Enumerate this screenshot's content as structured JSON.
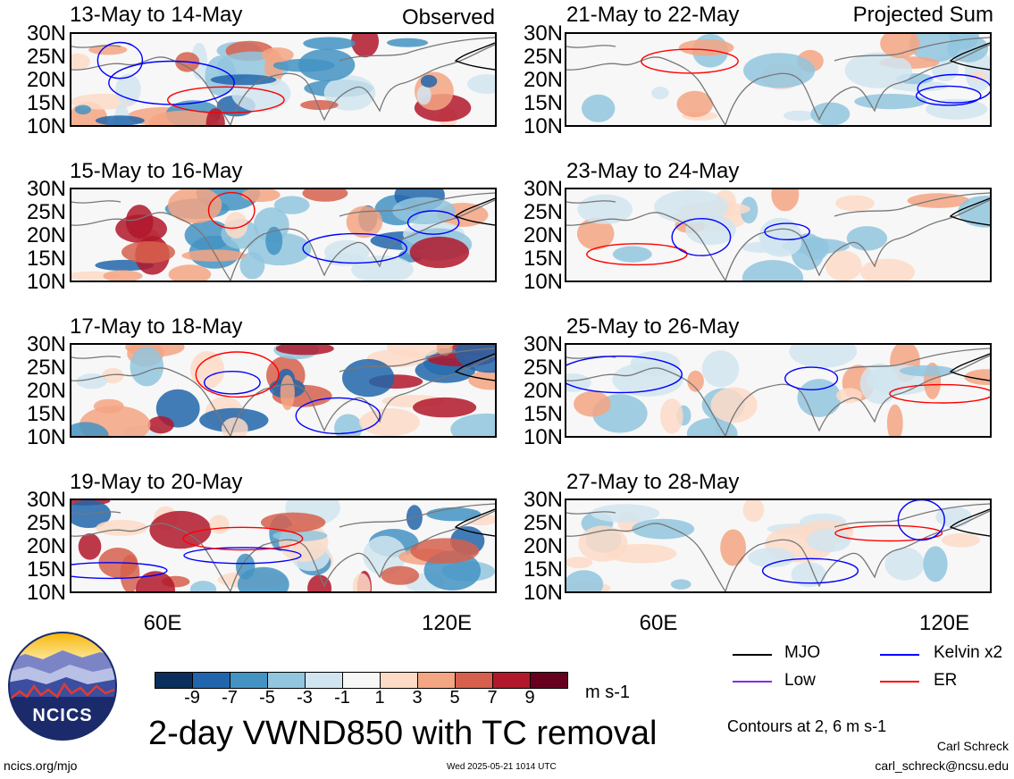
{
  "panels_left": [
    {
      "title": "13-May to 14-May",
      "note": "Observed"
    },
    {
      "title": "15-May to 16-May",
      "note": ""
    },
    {
      "title": "17-May to 18-May",
      "note": ""
    },
    {
      "title": "19-May to 20-May",
      "note": ""
    }
  ],
  "panels_right": [
    {
      "title": "21-May to 22-May",
      "note": "Projected Sum"
    },
    {
      "title": "23-May to 24-May",
      "note": ""
    },
    {
      "title": "25-May to 26-May",
      "note": ""
    },
    {
      "title": "27-May to 28-May",
      "note": ""
    }
  ],
  "lat_ticks": [
    "30N",
    "25N",
    "20N",
    "15N",
    "10N"
  ],
  "lon_ticks": [
    "60E",
    "120E"
  ],
  "colorbar": {
    "labels": [
      "-9",
      "-7",
      "-5",
      "-3",
      "-1",
      "1",
      "3",
      "5",
      "7",
      "9"
    ],
    "colors": [
      "#0b2e5c",
      "#2166ac",
      "#4393c3",
      "#92c5de",
      "#d1e5f0",
      "#f7f7f7",
      "#fddbc7",
      "#f4a582",
      "#d6604d",
      "#b2182b",
      "#67001f"
    ],
    "units": "m s-1"
  },
  "legend": {
    "mjo": "MJO",
    "mjo_color": "#000000",
    "kelvin": "Kelvin x2",
    "kelvin_color": "#0000ff",
    "low": "Low",
    "low_color": "#8a2be2",
    "er": "ER",
    "er_color": "#ff0000"
  },
  "contours_note": "Contours at 2, 6 m s-1",
  "main_title": "2-day VWND850 with TC removal",
  "logo_text": "NCICS",
  "footer": {
    "url": "ncics.org/mjo",
    "timestamp": "Wed 2025-05-21 1014 UTC",
    "author": "Carl Schreck",
    "email": "carl_schreck@ncsu.edu"
  }
}
